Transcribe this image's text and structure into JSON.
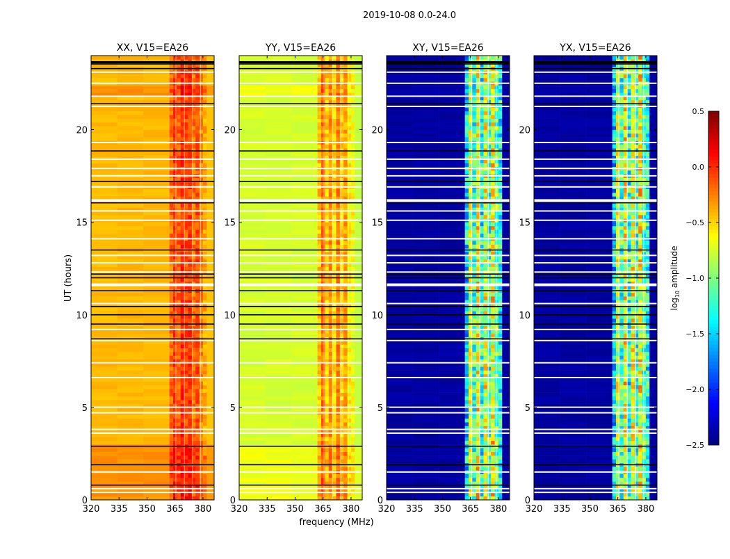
{
  "chart_data": {
    "type": "heatmap",
    "title": "2019-10-08 0.0-24.0",
    "xlabel": "frequency (MHz)",
    "ylabel": "UT (hours)",
    "xlim": [
      320,
      386
    ],
    "ylim": [
      0,
      24
    ],
    "xticks": [
      320,
      335,
      350,
      365,
      380
    ],
    "yticks": [
      0,
      5,
      10,
      15,
      20
    ],
    "colorbar": {
      "label_prefix": "log",
      "label_sub": "10",
      "label_suffix": " amplitude",
      "range": [
        -2.5,
        0.5
      ],
      "ticks": [
        "0.5",
        "0.0",
        "−0.5",
        "−1.0",
        "−1.5",
        "−2.0",
        "−2.5"
      ],
      "tick_values": [
        0.5,
        0.0,
        -0.5,
        -1.0,
        -1.5,
        -2.0,
        -2.5
      ],
      "colormap": "jet"
    },
    "band_edges_mhz": [
      362,
      364,
      366,
      368,
      370,
      372,
      374,
      376,
      378,
      380,
      382
    ],
    "flagged_white_hours": [
      0.4,
      0.6,
      1.5,
      3.6,
      3.8,
      4.7,
      5.0,
      6.6,
      7.4,
      8.6,
      9.2,
      10.6,
      11.65,
      12.3,
      12.8,
      13.2,
      14.1,
      15.1,
      15.6,
      16.2,
      16.9,
      17.5,
      17.9,
      18.4,
      19.3,
      21.25,
      21.8,
      22.5,
      23.1
    ],
    "flagged_black_hours": [
      0.8,
      1.9,
      2.9,
      8.7,
      9.5,
      10.0,
      10.45,
      11.3,
      12.0,
      12.2,
      13.5,
      16.05,
      17.2,
      18.85,
      21.4,
      23.3,
      23.55
    ],
    "panels": [
      {
        "title": "XX, V15=EA26",
        "baseline": -0.42,
        "band_levels": [
          -0.2,
          -0.05,
          -0.15,
          0.0,
          -0.1,
          -0.05,
          -0.2,
          -0.1,
          -0.25,
          -0.35
        ],
        "edge_level": -0.45,
        "early_boost": 0.12
      },
      {
        "title": "YY, V15=EA26",
        "baseline": -0.75,
        "band_levels": [
          -0.45,
          -0.2,
          -0.5,
          -0.3,
          -0.55,
          -0.25,
          -0.5,
          -0.35,
          -0.6,
          -0.65
        ],
        "edge_level": -0.8,
        "early_boost": 0.08
      },
      {
        "title": "XY, V15=EA26",
        "baseline": -2.4,
        "band_levels": [
          -1.5,
          -0.8,
          -1.2,
          -0.6,
          -1.3,
          -0.7,
          -1.2,
          -0.6,
          -1.1,
          -1.3
        ],
        "edge_level": -2.4,
        "early_boost": 0.0
      },
      {
        "title": "YX, V15=EA26",
        "baseline": -2.4,
        "band_levels": [
          -1.5,
          -0.8,
          -1.2,
          -0.6,
          -1.3,
          -0.7,
          -1.2,
          -0.6,
          -1.1,
          -1.3
        ],
        "edge_level": -2.4,
        "early_boost": 0.0
      }
    ]
  }
}
